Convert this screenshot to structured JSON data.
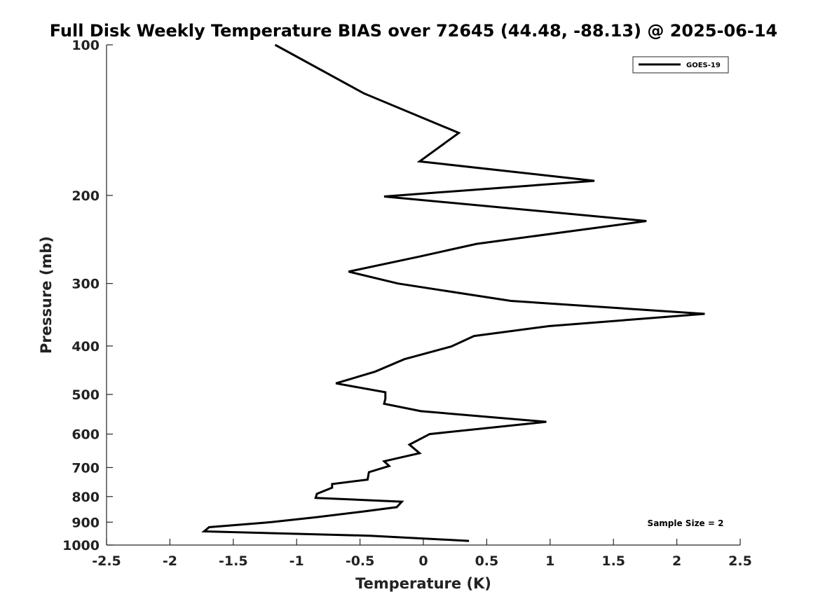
{
  "chart_data": {
    "type": "line",
    "title": "Full Disk Weekly Temperature BIAS over 72645 (44.48, -88.13) @ 2025-06-14",
    "xlabel": "Temperature (K)",
    "ylabel": "Pressure (mb)",
    "xlim": [
      -2.5,
      2.5
    ],
    "ylim": [
      1000,
      100
    ],
    "y_scale": "log",
    "y_direction": "reversed",
    "x_ticks": [
      "-2.5",
      "-2",
      "-1.5",
      "-1",
      "-0.5",
      "0",
      "0.5",
      "1",
      "1.5",
      "2",
      "2.5"
    ],
    "y_ticks": [
      "100",
      "200",
      "300",
      "400",
      "500",
      "600",
      "700",
      "800",
      "900",
      "1000"
    ],
    "grid": false,
    "legend_position": "top-right",
    "annotation": "Sample Size = 2",
    "series": [
      {
        "name": "GOES-19",
        "color": "#000000",
        "points": [
          [
            -1.17,
            100
          ],
          [
            -0.47,
            125
          ],
          [
            0.28,
            150
          ],
          [
            -0.03,
            171
          ],
          [
            1.35,
            187
          ],
          [
            -0.31,
            201
          ],
          [
            1.76,
            225
          ],
          [
            0.42,
            250
          ],
          [
            -0.03,
            265
          ],
          [
            -0.59,
            284
          ],
          [
            -0.2,
            300
          ],
          [
            0.69,
            325
          ],
          [
            2.22,
            345
          ],
          [
            0.99,
            365
          ],
          [
            0.4,
            382
          ],
          [
            0.22,
            401
          ],
          [
            -0.15,
            425
          ],
          [
            -0.38,
            450
          ],
          [
            -0.69,
            475
          ],
          [
            -0.3,
            495
          ],
          [
            -0.3,
            510
          ],
          [
            -0.31,
            522
          ],
          [
            -0.02,
            540
          ],
          [
            0.97,
            567
          ],
          [
            0.05,
            600
          ],
          [
            -0.11,
            630
          ],
          [
            -0.03,
            655
          ],
          [
            -0.31,
            680
          ],
          [
            -0.27,
            695
          ],
          [
            -0.43,
            715
          ],
          [
            -0.44,
            740
          ],
          [
            -0.72,
            755
          ],
          [
            -0.72,
            768
          ],
          [
            -0.84,
            790
          ],
          [
            -0.85,
            805
          ],
          [
            -0.17,
            819
          ],
          [
            -0.21,
            840
          ],
          [
            -0.49,
            858
          ],
          [
            -0.85,
            880
          ],
          [
            -1.2,
            900
          ],
          [
            -1.69,
            921
          ],
          [
            -1.73,
            939
          ],
          [
            -0.42,
            958
          ],
          [
            0.36,
            981
          ]
        ]
      }
    ]
  }
}
